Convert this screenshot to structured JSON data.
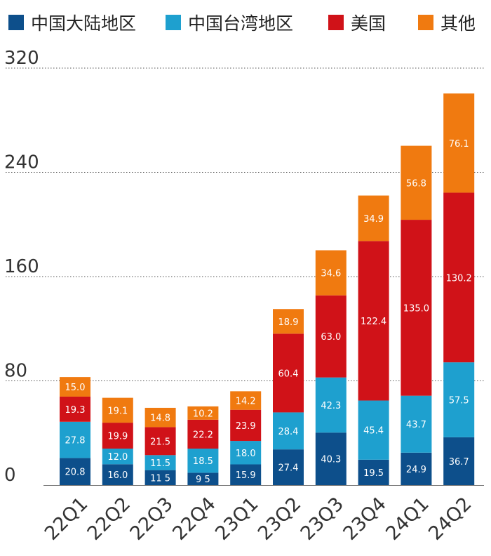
{
  "chart_data": {
    "type": "bar",
    "stacked": true,
    "categories": [
      "22Q1",
      "22Q2",
      "22Q3",
      "22Q4",
      "23Q1",
      "23Q2",
      "23Q3",
      "23Q4",
      "24Q1",
      "24Q2"
    ],
    "series": [
      {
        "name": "中国大陆地区",
        "color": "#0d4f8b",
        "values": [
          20.8,
          16.0,
          11.5,
          9.5,
          15.9,
          27.4,
          40.3,
          19.5,
          24.9,
          36.7
        ],
        "labels": [
          "20.8",
          "16.0",
          "11 5",
          "9 5",
          "15.9",
          "27.4",
          "40.3",
          "19.5",
          "24.9",
          "36.7"
        ]
      },
      {
        "name": "中国台湾地区",
        "color": "#1ea0cf",
        "values": [
          27.8,
          12.0,
          11.5,
          18.5,
          18.0,
          28.4,
          42.3,
          45.4,
          43.7,
          57.5
        ],
        "labels": [
          "27.8",
          "12.0",
          "11.5",
          "18.5",
          "18.0",
          "28.4",
          "42.3",
          "45.4",
          "43.7",
          "57.5"
        ]
      },
      {
        "name": "美国",
        "color": "#d01218",
        "values": [
          19.3,
          19.9,
          21.5,
          22.2,
          23.9,
          60.4,
          63.0,
          122.4,
          135.0,
          130.2
        ],
        "labels": [
          "19.3",
          "19.9",
          "21.5",
          "22.2",
          "23.9",
          "60.4",
          "63.0",
          "122.4",
          "135.0",
          "130.2"
        ]
      },
      {
        "name": "其他",
        "color": "#f07a10",
        "values": [
          15.0,
          19.1,
          14.8,
          10.2,
          14.2,
          18.9,
          34.6,
          34.9,
          56.8,
          76.1
        ],
        "labels": [
          "15.0",
          "19.1",
          "14.8",
          "10.2",
          "14.2",
          "18.9",
          "34.6",
          "34.9",
          "56.8",
          "76.1"
        ]
      }
    ],
    "yticks": [
      0,
      80,
      160,
      240,
      320
    ],
    "ylim": [
      0,
      320
    ],
    "grid": true,
    "legend": "top"
  }
}
